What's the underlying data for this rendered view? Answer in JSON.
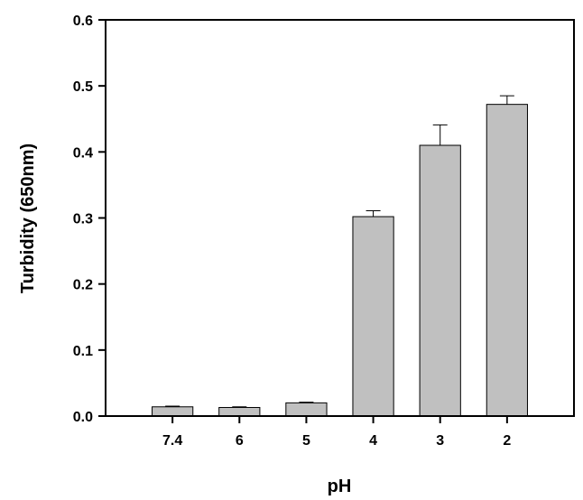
{
  "chart_data": {
    "type": "bar",
    "title": "",
    "xlabel": "pH",
    "ylabel": "Turbidity (650nm)",
    "categories": [
      "7.4",
      "6",
      "5",
      "4",
      "3",
      "2"
    ],
    "values": [
      0.014,
      0.013,
      0.02,
      0.302,
      0.41,
      0.472
    ],
    "errors": [
      0.001,
      0.001,
      0.001,
      0.009,
      0.031,
      0.013
    ],
    "ylim": [
      0,
      0.6
    ],
    "yticks": [
      "0.0",
      "0.1",
      "0.2",
      "0.3",
      "0.4",
      "0.5",
      "0.6"
    ],
    "bar_color": "#c0c0c0",
    "grid": false
  }
}
